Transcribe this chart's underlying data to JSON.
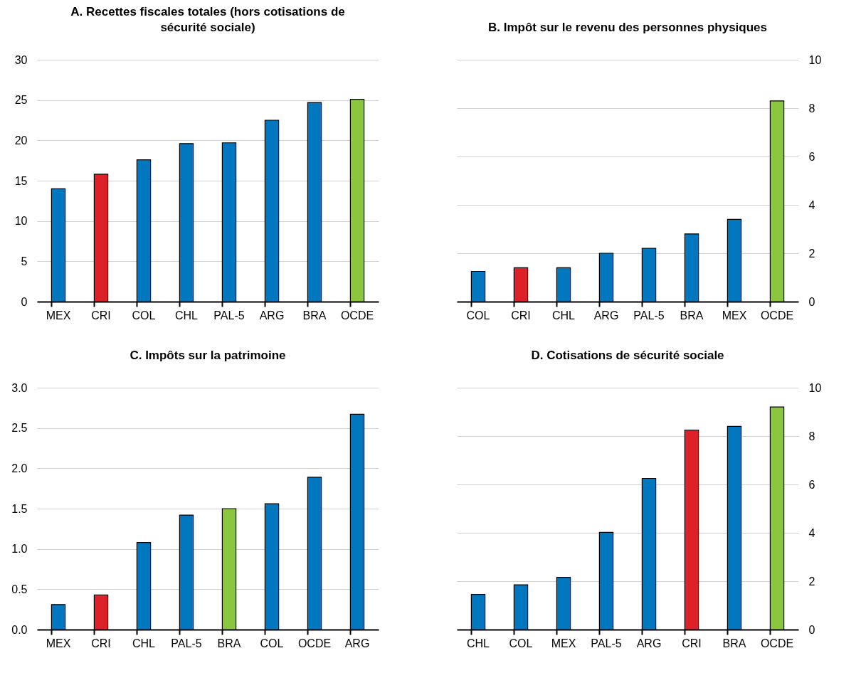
{
  "chart_data": [
    {
      "type": "bar",
      "title": "A. Recettes fiscales totales (hors cotisations de sécurité sociale)",
      "categories": [
        "MEX",
        "CRI",
        "COL",
        "CHL",
        "PAL-5",
        "ARG",
        "BRA",
        "OCDE"
      ],
      "values": [
        14.0,
        15.8,
        17.6,
        19.6,
        19.7,
        22.5,
        24.7,
        25.1
      ],
      "colors": [
        "#0077bf",
        "#dc2228",
        "#0077bf",
        "#0077bf",
        "#0077bf",
        "#0077bf",
        "#0077bf",
        "#8cc63f"
      ],
      "ylim": [
        0,
        30
      ],
      "yticks": [
        0,
        5,
        10,
        15,
        20,
        25,
        30
      ],
      "grid": "y"
    },
    {
      "type": "bar",
      "title": "B. Impôt sur le revenu des personnes physiques",
      "categories": [
        "COL",
        "CRI",
        "CHL",
        "ARG",
        "PAL-5",
        "BRA",
        "MEX",
        "OCDE"
      ],
      "values": [
        1.25,
        1.4,
        1.4,
        2.0,
        2.2,
        2.8,
        3.4,
        8.3
      ],
      "colors": [
        "#0077bf",
        "#dc2228",
        "#0077bf",
        "#0077bf",
        "#0077bf",
        "#0077bf",
        "#0077bf",
        "#8cc63f"
      ],
      "ylim": [
        0,
        10
      ],
      "yticks": [
        0,
        2,
        4,
        6,
        8,
        10
      ],
      "grid": "y"
    },
    {
      "type": "bar",
      "title": "C. Impôts sur la patrimoine",
      "categories": [
        "MEX",
        "CRI",
        "CHL",
        "PAL-5",
        "BRA",
        "COL",
        "OCDE",
        "ARG"
      ],
      "values": [
        0.31,
        0.43,
        1.08,
        1.42,
        1.5,
        1.56,
        1.89,
        2.67
      ],
      "colors": [
        "#0077bf",
        "#dc2228",
        "#0077bf",
        "#0077bf",
        "#8cc63f",
        "#0077bf",
        "#0077bf",
        "#0077bf"
      ],
      "ylim": [
        0,
        3
      ],
      "yticks": [
        {
          "value": 0,
          "label": "0.0"
        },
        {
          "value": 0.5,
          "label": "0.5"
        },
        {
          "value": 1,
          "label": "1.0"
        },
        {
          "value": 1.5,
          "label": "1.5"
        },
        {
          "value": 2,
          "label": "2.0"
        },
        {
          "value": 2.5,
          "label": "2.5"
        },
        {
          "value": 3,
          "label": "3.0"
        }
      ],
      "grid": "y"
    },
    {
      "type": "bar",
      "title": "D. Cotisations de sécurité sociale",
      "categories": [
        "CHL",
        "COL",
        "MEX",
        "PAL-5",
        "ARG",
        "CRI",
        "BRA",
        "OCDE"
      ],
      "values": [
        1.45,
        1.85,
        2.16,
        4.02,
        6.25,
        8.25,
        8.4,
        9.2
      ],
      "colors": [
        "#0077bf",
        "#0077bf",
        "#0077bf",
        "#0077bf",
        "#0077bf",
        "#dc2228",
        "#0077bf",
        "#8cc63f"
      ],
      "ylim": [
        0,
        10
      ],
      "yticks": [
        0,
        2,
        4,
        6,
        8,
        10
      ],
      "grid": "y"
    }
  ]
}
